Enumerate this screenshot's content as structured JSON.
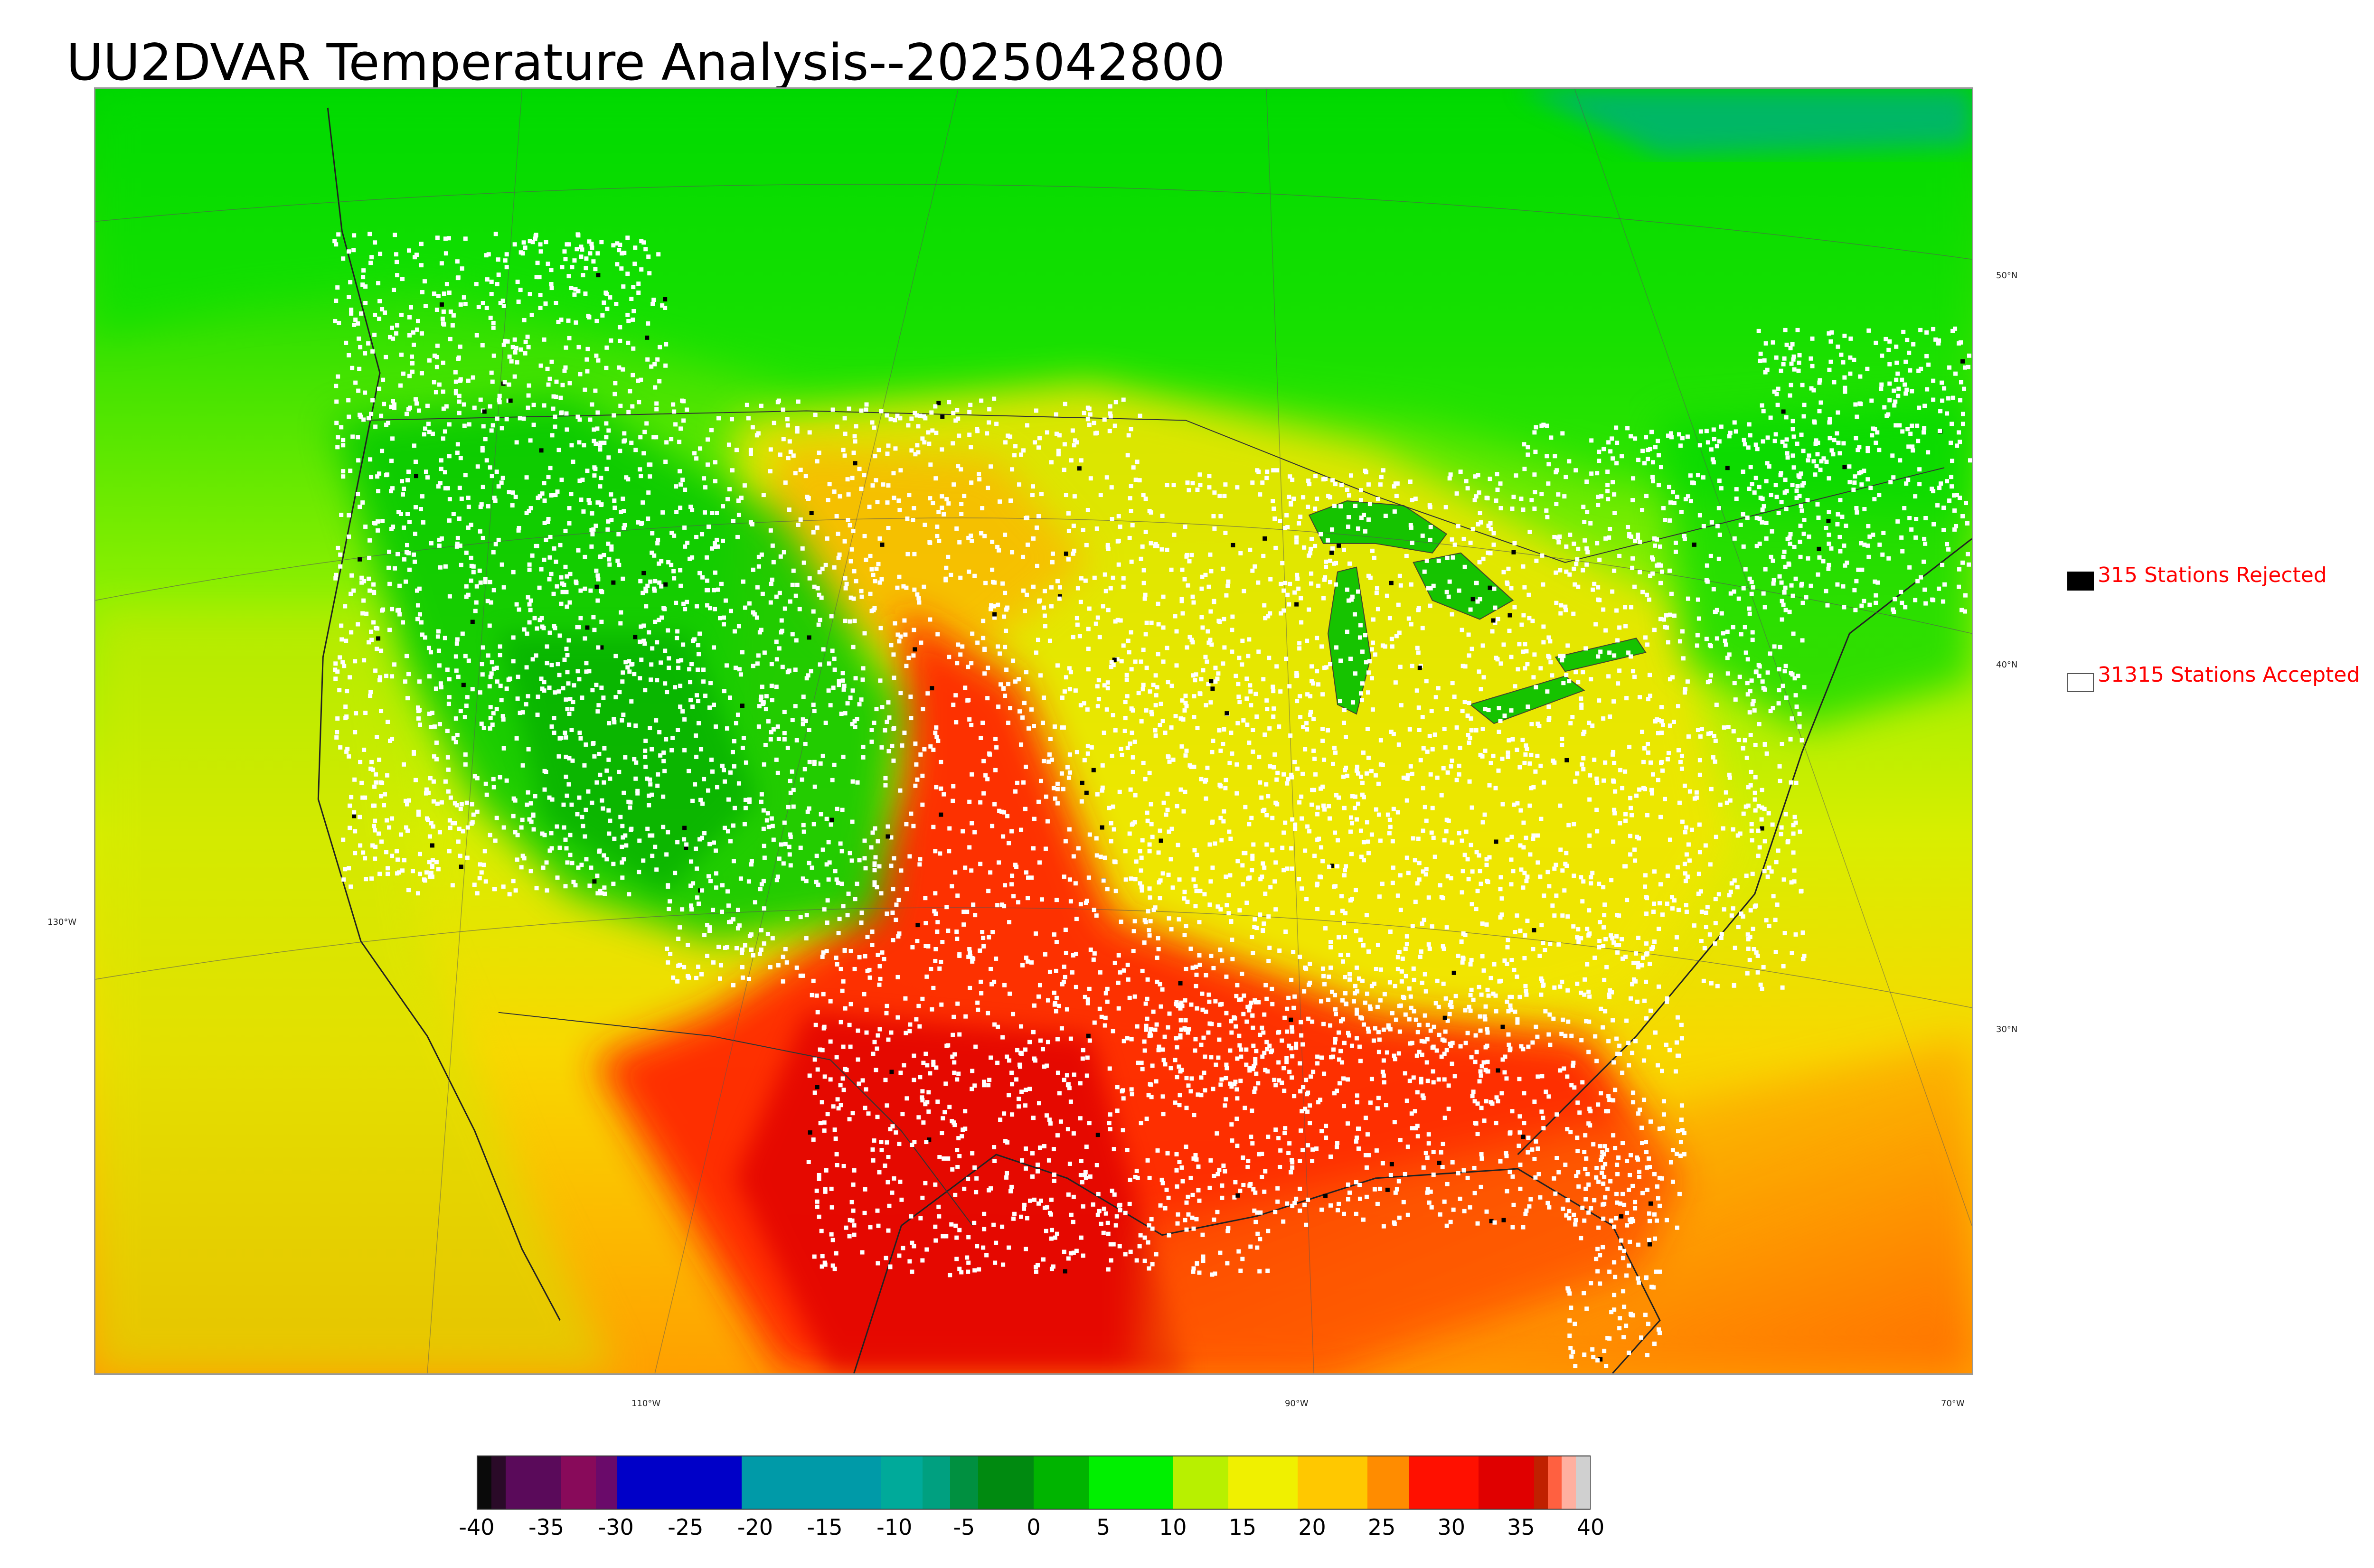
{
  "title": "UU2DVAR Temperature Analysis--2025042800",
  "lat_labels": [
    "50°N",
    "40°N",
    "30°N"
  ],
  "lon_labels": [
    "130°W",
    "110°W",
    "90°W",
    "70°W"
  ],
  "legend": {
    "rejected": {
      "label": "315 Stations Rejected",
      "color": "#000000"
    },
    "accepted": {
      "label": "31315 Stations Accepted",
      "color": "#ffffff"
    }
  },
  "colorbar": {
    "ticks": [
      "-40",
      "-35",
      "-30",
      "-25",
      "-20",
      "-15",
      "-10",
      "-5",
      "0",
      "5",
      "10",
      "15",
      "20",
      "25",
      "30",
      "35",
      "40"
    ],
    "min": -40,
    "max": 40,
    "stops": [
      {
        "from": -40,
        "to": -39,
        "color": "#0a0a0a"
      },
      {
        "from": -39,
        "to": -38,
        "color": "#2a0a28"
      },
      {
        "from": -38,
        "to": -34,
        "color": "#5a0a5a"
      },
      {
        "from": -34,
        "to": -31.5,
        "color": "#880a5a"
      },
      {
        "from": -31.5,
        "to": -30,
        "color": "#6a0a6a"
      },
      {
        "from": -30,
        "to": -21,
        "color": "#0000c8"
      },
      {
        "from": -21,
        "to": -11,
        "color": "#009aa8"
      },
      {
        "from": -11,
        "to": -8,
        "color": "#00aa9a"
      },
      {
        "from": -8,
        "to": -6,
        "color": "#00a080"
      },
      {
        "from": -6,
        "to": -4,
        "color": "#009040"
      },
      {
        "from": -4,
        "to": 0,
        "color": "#008a10"
      },
      {
        "from": 0,
        "to": 4,
        "color": "#00b400"
      },
      {
        "from": 4,
        "to": 10,
        "color": "#00f000"
      },
      {
        "from": 10,
        "to": 14,
        "color": "#b8f000"
      },
      {
        "from": 14,
        "to": 19,
        "color": "#f0f000"
      },
      {
        "from": 19,
        "to": 24,
        "color": "#ffc800"
      },
      {
        "from": 24,
        "to": 27,
        "color": "#ff8c00"
      },
      {
        "from": 27,
        "to": 32,
        "color": "#ff1000"
      },
      {
        "from": 32,
        "to": 36,
        "color": "#e00000"
      },
      {
        "from": 36,
        "to": 37,
        "color": "#c02000"
      },
      {
        "from": 37,
        "to": 38,
        "color": "#ff6040"
      },
      {
        "from": 38,
        "to": 39,
        "color": "#ffb0a0"
      },
      {
        "from": 39,
        "to": 40,
        "color": "#d0d0d0"
      }
    ]
  }
}
